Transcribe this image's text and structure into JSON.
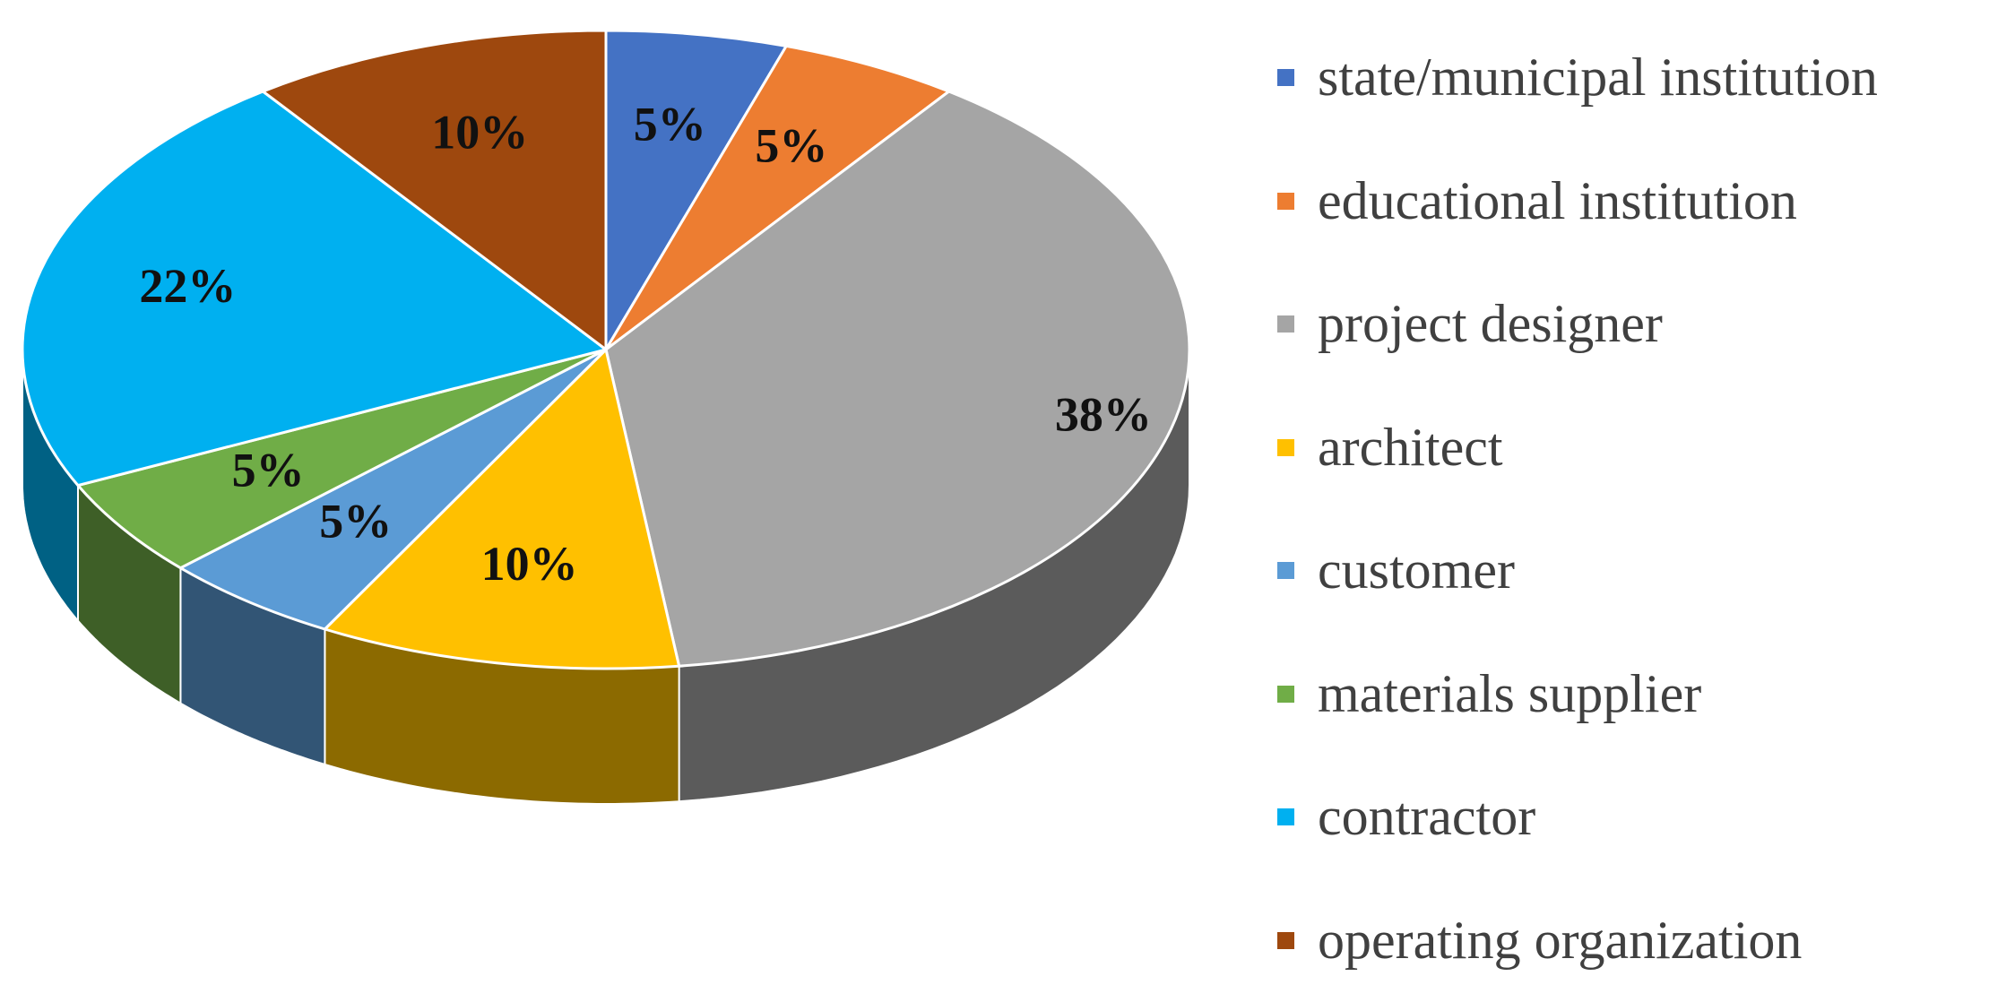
{
  "chart_data": {
    "type": "pie",
    "title": "",
    "slices": [
      {
        "label": "state/municipal institution",
        "value": 5,
        "display": "5%",
        "color": "#4472C4"
      },
      {
        "label": "educational institution",
        "value": 5,
        "display": "5%",
        "color": "#ED7D31"
      },
      {
        "label": "project designer",
        "value": 38,
        "display": "38%",
        "color": "#A5A5A5"
      },
      {
        "label": "architect",
        "value": 10,
        "display": "10%",
        "color": "#FFC000"
      },
      {
        "label": "customer",
        "value": 5,
        "display": "5%",
        "color": "#5B9BD5"
      },
      {
        "label": "materials supplier",
        "value": 5,
        "display": "5%",
        "color": "#70AD47"
      },
      {
        "label": "contractor",
        "value": 22,
        "display": "22%",
        "color": "#00B0F0"
      },
      {
        "label": "operating organization",
        "value": 10,
        "display": "10%",
        "color": "#9E480E"
      }
    ],
    "legend_position": "right",
    "style": "3d"
  }
}
